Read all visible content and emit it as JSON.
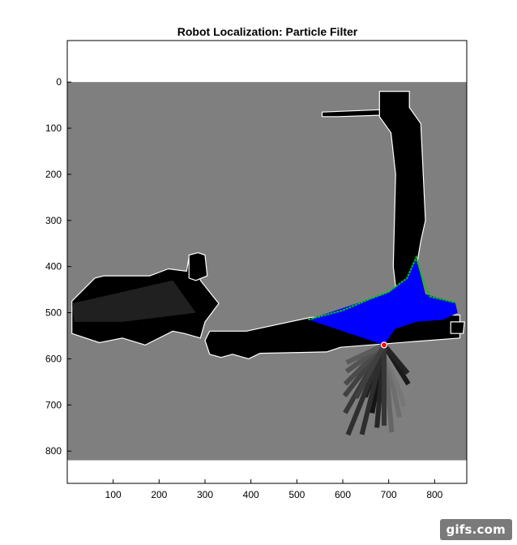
{
  "chart_data": {
    "type": "heatmap",
    "title": "Robot Localization: Particle Filter",
    "xlabel": "",
    "ylabel": "",
    "x_ticks": [
      100,
      200,
      300,
      400,
      500,
      600,
      700,
      800
    ],
    "y_ticks": [
      0,
      100,
      200,
      300,
      400,
      500,
      600,
      700,
      800
    ],
    "xlim": [
      0,
      870
    ],
    "ylim": [
      870,
      -90
    ],
    "y_reversed": true,
    "grid": false,
    "map_extent": {
      "x": [
        0,
        870
      ],
      "y": [
        0,
        820
      ]
    },
    "colors": {
      "unknown": "#7f7f7f",
      "free_space": "#000000",
      "wall": "#ffffff",
      "scan_field": "#0000ff",
      "particles": "#00cc00",
      "robot": "#ff0000"
    },
    "corridors": [
      {
        "name": "vertical-corridor",
        "polygon": [
          [
            680,
            20
          ],
          [
            745,
            20
          ],
          [
            745,
            55
          ],
          [
            770,
            90
          ],
          [
            780,
            300
          ],
          [
            770,
            345
          ],
          [
            745,
            490
          ],
          [
            730,
            490
          ],
          [
            720,
            485
          ],
          [
            710,
            400
          ],
          [
            715,
            200
          ],
          [
            705,
            110
          ],
          [
            680,
            75
          ]
        ]
      },
      {
        "name": "horizontal-corridor",
        "polygon": [
          [
            390,
            540
          ],
          [
            530,
            510
          ],
          [
            855,
            505
          ],
          [
            855,
            555
          ],
          [
            595,
            575
          ],
          [
            565,
            585
          ],
          [
            420,
            588
          ],
          [
            395,
            600
          ],
          [
            360,
            590
          ],
          [
            335,
            597
          ],
          [
            310,
            590
          ],
          [
            300,
            560
          ],
          [
            310,
            540
          ]
        ]
      },
      {
        "name": "left-wing",
        "polygon": [
          [
            10,
            475
          ],
          [
            60,
            425
          ],
          [
            80,
            420
          ],
          [
            180,
            420
          ],
          [
            220,
            405
          ],
          [
            260,
            410
          ],
          [
            265,
            380
          ],
          [
            280,
            375
          ],
          [
            290,
            430
          ],
          [
            330,
            480
          ],
          [
            300,
            520
          ],
          [
            290,
            555
          ],
          [
            255,
            545
          ],
          [
            230,
            540
          ],
          [
            170,
            570
          ],
          [
            120,
            555
          ],
          [
            70,
            565
          ],
          [
            10,
            545
          ]
        ]
      },
      {
        "name": "top-left-alcove",
        "polygon": [
          [
            265,
            375
          ],
          [
            285,
            370
          ],
          [
            300,
            375
          ],
          [
            305,
            420
          ],
          [
            280,
            430
          ],
          [
            265,
            425
          ]
        ]
      },
      {
        "name": "right-alcove",
        "polygon": [
          [
            835,
            520
          ],
          [
            865,
            520
          ],
          [
            862,
            545
          ],
          [
            835,
            545
          ]
        ]
      },
      {
        "name": "upper-ghost-corridor",
        "polygon": [
          [
            555,
            65
          ],
          [
            680,
            60
          ],
          [
            680,
            72
          ],
          [
            590,
            75
          ],
          [
            555,
            75
          ]
        ]
      }
    ],
    "scan_fan": {
      "origin": [
        690,
        570
      ],
      "polygon": [
        [
          690,
          570
        ],
        [
          525,
          515
        ],
        [
          660,
          470
        ],
        [
          700,
          455
        ],
        [
          740,
          425
        ],
        [
          760,
          380
        ],
        [
          780,
          460
        ],
        [
          845,
          478
        ],
        [
          850,
          500
        ],
        [
          820,
          515
        ],
        [
          760,
          520
        ],
        [
          715,
          535
        ]
      ]
    },
    "particles_outline": [
      [
        525,
        515
      ],
      [
        600,
        495
      ],
      [
        660,
        470
      ],
      [
        700,
        455
      ],
      [
        740,
        425
      ],
      [
        760,
        380
      ],
      [
        775,
        430
      ],
      [
        790,
        465
      ],
      [
        845,
        478
      ]
    ],
    "rays": [
      {
        "len": 150,
        "angle": 100
      },
      {
        "len": 120,
        "angle": 110
      },
      {
        "len": 180,
        "angle": 95
      },
      {
        "len": 210,
        "angle": 112
      },
      {
        "len": 170,
        "angle": 120
      },
      {
        "len": 140,
        "angle": 128
      },
      {
        "len": 120,
        "angle": 135
      },
      {
        "len": 100,
        "angle": 145
      },
      {
        "len": 90,
        "angle": 155
      },
      {
        "len": 190,
        "angle": 85
      },
      {
        "len": 160,
        "angle": 78
      },
      {
        "len": 140,
        "angle": 72
      },
      {
        "len": 120,
        "angle": 65
      },
      {
        "len": 100,
        "angle": 58
      },
      {
        "len": 80,
        "angle": 50
      },
      {
        "len": 200,
        "angle": 104
      },
      {
        "len": 175,
        "angle": 90
      },
      {
        "len": 130,
        "angle": 118
      }
    ],
    "robot": {
      "x": 690,
      "y": 570
    }
  },
  "watermark": "gifs.com"
}
